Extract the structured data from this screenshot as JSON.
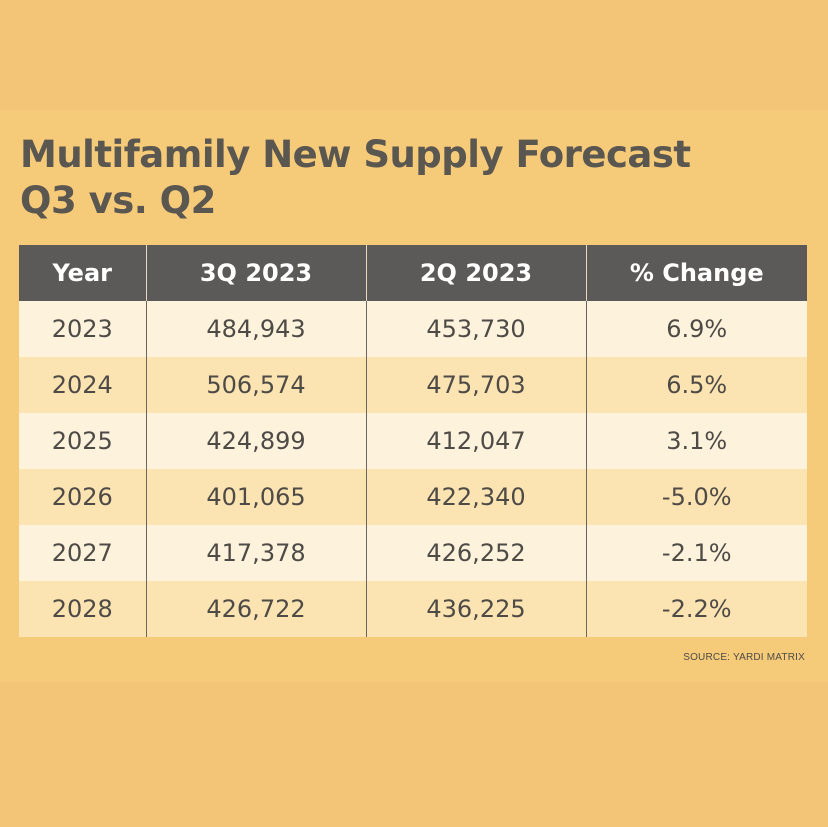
{
  "chart_data": {
    "type": "table",
    "title_line1": "Multifamily New Supply Forecast",
    "title_line2": "Q3 vs. Q2",
    "columns": [
      "Year",
      "3Q 2023",
      "2Q 2023",
      "% Change"
    ],
    "rows": [
      [
        "2023",
        "484,943",
        "453,730",
        "6.9%"
      ],
      [
        "2024",
        "506,574",
        "475,703",
        "6.5%"
      ],
      [
        "2025",
        "424,899",
        "412,047",
        "3.1%"
      ],
      [
        "2026",
        "401,065",
        "422,340",
        "-5.0%"
      ],
      [
        "2027",
        "417,378",
        "426,252",
        "-2.1%"
      ],
      [
        "2028",
        "426,722",
        "436,225",
        "-2.2%"
      ]
    ],
    "source": "SOURCE: YARDI MATRIX"
  },
  "colors": {
    "background": "#f2c676",
    "header_bg": "#5c5a58",
    "row_light": "#fdf2dc",
    "row_dark": "#fbe3b2",
    "text": "#4e4b47",
    "title_text": "#5a5650"
  }
}
